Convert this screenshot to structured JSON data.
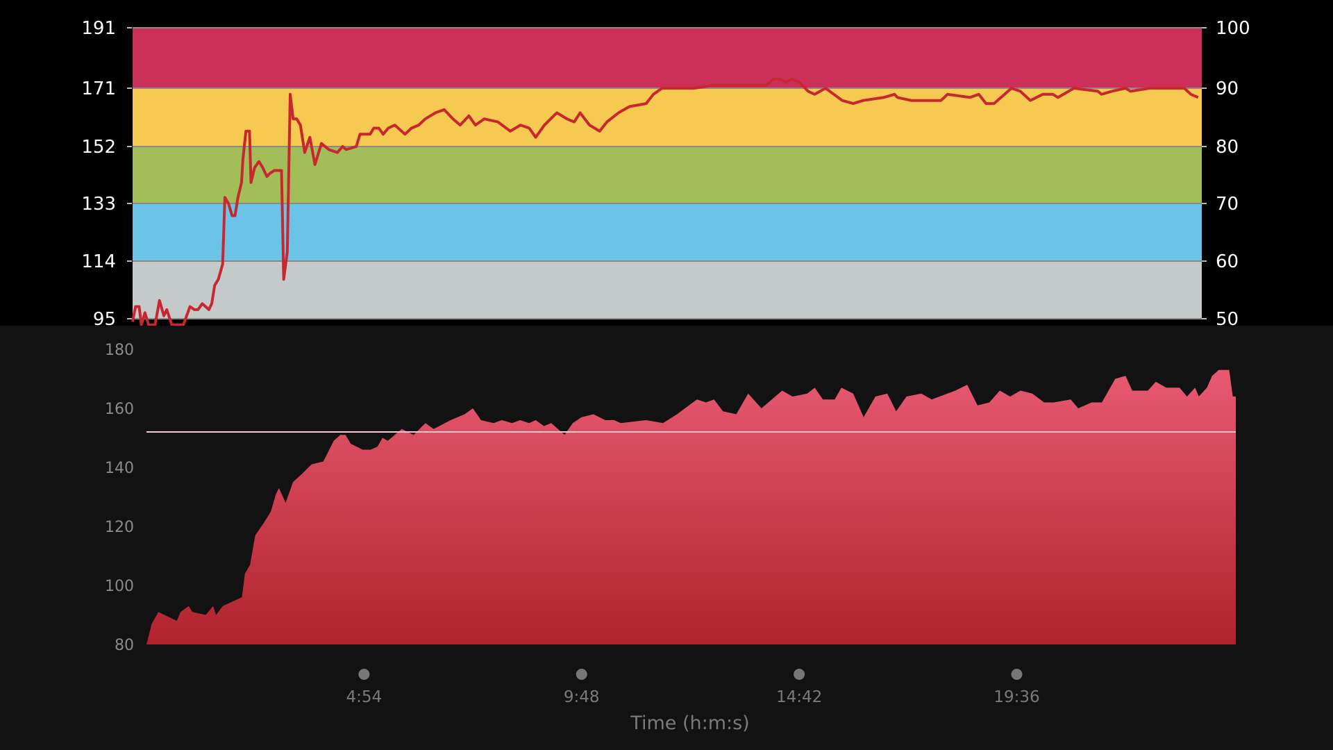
{
  "chart_data": [
    {
      "type": "line",
      "y_left_ticks": [
        "95",
        "114",
        "133",
        "152",
        "171",
        "191"
      ],
      "y_right_ticks": [
        "50",
        "60",
        "70",
        "80",
        "90",
        "100"
      ],
      "ylim": [
        95,
        191
      ],
      "zones": [
        {
          "from": 95,
          "to": 114,
          "color": "#c4c9c9"
        },
        {
          "from": 114,
          "to": 133,
          "color": "#6bc3e8"
        },
        {
          "from": 133,
          "to": 152,
          "color": "#a3bd59"
        },
        {
          "from": 152,
          "to": 171,
          "color": "#f6c950"
        },
        {
          "from": 171,
          "to": 191,
          "color": "#cc3059"
        }
      ],
      "line_color": "#c8272f",
      "points": [
        [
          "0:00",
          94
        ],
        [
          "0:04",
          99
        ],
        [
          "0:09",
          99
        ],
        [
          "0:12",
          93
        ],
        [
          "0:17",
          97
        ],
        [
          "0:22",
          93
        ],
        [
          "0:31",
          93
        ],
        [
          "0:37",
          101
        ],
        [
          "0:43",
          96
        ],
        [
          "0:47",
          98
        ],
        [
          "0:54",
          93
        ],
        [
          "1:10",
          93
        ],
        [
          "1:19",
          99
        ],
        [
          "1:25",
          98
        ],
        [
          "1:30",
          98
        ],
        [
          "1:36",
          100
        ],
        [
          "1:45",
          98
        ],
        [
          "1:49",
          100
        ],
        [
          "1:53",
          106
        ],
        [
          "1:58",
          108
        ],
        [
          "2:04",
          113
        ],
        [
          "2:07",
          135
        ],
        [
          "2:12",
          133
        ],
        [
          "2:17",
          129
        ],
        [
          "2:21",
          129
        ],
        [
          "2:25",
          135
        ],
        [
          "2:30",
          140
        ],
        [
          "2:32",
          148
        ],
        [
          "2:36",
          157
        ],
        [
          "2:41",
          157
        ],
        [
          "2:43",
          140
        ],
        [
          "2:48",
          145
        ],
        [
          "2:54",
          147
        ],
        [
          "2:59",
          145
        ],
        [
          "3:05",
          142
        ],
        [
          "3:09",
          143
        ],
        [
          "3:15",
          144
        ],
        [
          "3:25",
          144
        ],
        [
          "3:28",
          108
        ],
        [
          "3:33",
          117
        ],
        [
          "3:37",
          169
        ],
        [
          "3:41",
          161
        ],
        [
          "3:46",
          161
        ],
        [
          "3:51",
          159
        ],
        [
          "3:57",
          150
        ],
        [
          "4:04",
          155
        ],
        [
          "4:11",
          146
        ],
        [
          "4:20",
          153
        ],
        [
          "4:30",
          151
        ],
        [
          "4:42",
          150
        ],
        [
          "4:49",
          152
        ],
        [
          "4:54",
          151
        ],
        [
          "5:08",
          152
        ],
        [
          "5:13",
          156
        ],
        [
          "5:27",
          156
        ],
        [
          "5:32",
          158
        ],
        [
          "5:39",
          158
        ],
        [
          "5:45",
          156
        ],
        [
          "5:52",
          158
        ],
        [
          "6:01",
          159
        ],
        [
          "6:15",
          156
        ],
        [
          "6:24",
          158
        ],
        [
          "6:34",
          159
        ],
        [
          "6:43",
          161
        ],
        [
          "6:57",
          163
        ],
        [
          "7:09",
          164
        ],
        [
          "7:21",
          161
        ],
        [
          "7:31",
          159
        ],
        [
          "7:43",
          162
        ],
        [
          "7:52",
          159
        ],
        [
          "8:04",
          161
        ],
        [
          "8:23",
          160
        ],
        [
          "8:40",
          157
        ],
        [
          "8:54",
          159
        ],
        [
          "9:06",
          158
        ],
        [
          "9:15",
          155
        ],
        [
          "9:27",
          159
        ],
        [
          "9:44",
          163
        ],
        [
          "9:58",
          161
        ],
        [
          "10:08",
          160
        ],
        [
          "10:16",
          163
        ],
        [
          "10:29",
          159
        ],
        [
          "10:43",
          157
        ],
        [
          "10:53",
          160
        ],
        [
          "11:09",
          163
        ],
        [
          "11:24",
          165
        ],
        [
          "11:47",
          166
        ],
        [
          "11:57",
          169
        ],
        [
          "12:09",
          171
        ],
        [
          "12:24",
          171
        ],
        [
          "12:43",
          171
        ],
        [
          "12:53",
          171
        ],
        [
          "13:21",
          172
        ],
        [
          "13:26",
          172
        ],
        [
          "13:38",
          172
        ],
        [
          "14:33",
          172
        ],
        [
          "14:42",
          174
        ],
        [
          "14:52",
          174
        ],
        [
          "14:59",
          173
        ],
        [
          "15:08",
          174
        ],
        [
          "15:18",
          173
        ],
        [
          "15:30",
          170
        ],
        [
          "15:39",
          169
        ],
        [
          "15:54",
          171
        ],
        [
          "16:17",
          167
        ],
        [
          "16:32",
          166
        ],
        [
          "16:46",
          167
        ],
        [
          "17:14",
          168
        ],
        [
          "17:29",
          169
        ],
        [
          "17:33",
          168
        ],
        [
          "17:52",
          167
        ],
        [
          "18:33",
          167
        ],
        [
          "18:42",
          169
        ],
        [
          "19:13",
          168
        ],
        [
          "19:25",
          169
        ],
        [
          "19:35",
          166
        ],
        [
          "19:46",
          166
        ],
        [
          "20:10",
          171
        ],
        [
          "20:22",
          170
        ],
        [
          "20:36",
          167
        ],
        [
          "20:53",
          169
        ],
        [
          "21:07",
          169
        ],
        [
          "21:14",
          168
        ],
        [
          "21:36",
          171
        ],
        [
          "22:09",
          170
        ],
        [
          "22:14",
          169
        ],
        [
          "22:28",
          170
        ],
        [
          "22:47",
          171
        ],
        [
          "22:54",
          170
        ],
        [
          "23:20",
          171
        ],
        [
          "24:08",
          171
        ],
        [
          "24:17",
          169
        ],
        [
          "24:27",
          168
        ]
      ]
    },
    {
      "type": "area",
      "y_ticks": [
        "80",
        "100",
        "120",
        "140",
        "160",
        "180"
      ],
      "ylim": [
        80,
        180
      ],
      "x_ticks": [
        "4:54",
        "9:48",
        "14:42",
        "19:36"
      ],
      "xlabel": "Time (h:m:s)",
      "reference_line": 152,
      "fill_top_color": "#e85a72",
      "fill_bottom_color": "#b0222c",
      "points": [
        [
          "0:00",
          80
        ],
        [
          "0:07",
          87
        ],
        [
          "0:16",
          91
        ],
        [
          "0:41",
          88
        ],
        [
          "0:46",
          91
        ],
        [
          "0:57",
          93
        ],
        [
          "1:02",
          91
        ],
        [
          "1:20",
          90
        ],
        [
          "1:30",
          93
        ],
        [
          "1:34",
          90
        ],
        [
          "1:43",
          93
        ],
        [
          "2:09",
          96
        ],
        [
          "2:13",
          104
        ],
        [
          "2:20",
          107
        ],
        [
          "2:27",
          117
        ],
        [
          "2:38",
          121
        ],
        [
          "2:48",
          125
        ],
        [
          "2:55",
          131
        ],
        [
          "2:59",
          133
        ],
        [
          "3:08",
          128
        ],
        [
          "3:18",
          135
        ],
        [
          "3:31",
          138
        ],
        [
          "3:43",
          141
        ],
        [
          "3:59",
          142
        ],
        [
          "4:13",
          149
        ],
        [
          "4:22",
          151
        ],
        [
          "4:29",
          151
        ],
        [
          "4:36",
          148
        ],
        [
          "4:52",
          146
        ],
        [
          "5:03",
          146
        ],
        [
          "5:12",
          147
        ],
        [
          "5:19",
          150
        ],
        [
          "5:26",
          149
        ],
        [
          "5:45",
          153
        ],
        [
          "6:01",
          151
        ],
        [
          "6:17",
          155
        ],
        [
          "6:28",
          153
        ],
        [
          "6:51",
          156
        ],
        [
          "7:10",
          158
        ],
        [
          "7:21",
          160
        ],
        [
          "7:32",
          156
        ],
        [
          "7:49",
          155
        ],
        [
          "8:00",
          156
        ],
        [
          "8:14",
          155
        ],
        [
          "8:25",
          156
        ],
        [
          "8:37",
          155
        ],
        [
          "8:46",
          156
        ],
        [
          "8:57",
          154
        ],
        [
          "9:07",
          155
        ],
        [
          "9:25",
          151
        ],
        [
          "9:36",
          155
        ],
        [
          "9:48",
          157
        ],
        [
          "10:04",
          158
        ],
        [
          "10:20",
          156
        ],
        [
          "10:32",
          156
        ],
        [
          "10:41",
          155
        ],
        [
          "11:15",
          156
        ],
        [
          "11:38",
          155
        ],
        [
          "11:57",
          158
        ],
        [
          "12:13",
          161
        ],
        [
          "12:24",
          163
        ],
        [
          "12:36",
          162
        ],
        [
          "12:47",
          163
        ],
        [
          "12:59",
          159
        ],
        [
          "13:17",
          158
        ],
        [
          "13:33",
          165
        ],
        [
          "13:51",
          160
        ],
        [
          "14:05",
          163
        ],
        [
          "14:19",
          166
        ],
        [
          "14:33",
          164
        ],
        [
          "14:53",
          165
        ],
        [
          "15:03",
          167
        ],
        [
          "15:14",
          163
        ],
        [
          "15:30",
          163
        ],
        [
          "15:39",
          167
        ],
        [
          "15:55",
          165
        ],
        [
          "16:09",
          157
        ],
        [
          "16:25",
          164
        ],
        [
          "16:41",
          165
        ],
        [
          "16:53",
          159
        ],
        [
          "17:07",
          164
        ],
        [
          "17:27",
          165
        ],
        [
          "17:41",
          163
        ],
        [
          "18:13",
          166
        ],
        [
          "18:29",
          168
        ],
        [
          "18:43",
          161
        ],
        [
          "18:59",
          162
        ],
        [
          "19:13",
          166
        ],
        [
          "19:27",
          164
        ],
        [
          "19:41",
          166
        ],
        [
          "19:57",
          165
        ],
        [
          "20:13",
          162
        ],
        [
          "20:26",
          162
        ],
        [
          "20:49",
          163
        ],
        [
          "20:59",
          160
        ],
        [
          "21:17",
          162
        ],
        [
          "21:31",
          162
        ],
        [
          "21:49",
          170
        ],
        [
          "22:03",
          171
        ],
        [
          "22:12",
          166
        ],
        [
          "22:33",
          166
        ],
        [
          "22:44",
          169
        ],
        [
          "22:58",
          167
        ],
        [
          "23:16",
          167
        ],
        [
          "23:26",
          164
        ],
        [
          "23:37",
          167
        ],
        [
          "23:42",
          164
        ],
        [
          "23:53",
          167
        ],
        [
          "24:00",
          171
        ],
        [
          "24:09",
          173
        ],
        [
          "24:23",
          173
        ],
        [
          "24:28",
          164
        ],
        [
          "24:32",
          164
        ]
      ]
    }
  ]
}
